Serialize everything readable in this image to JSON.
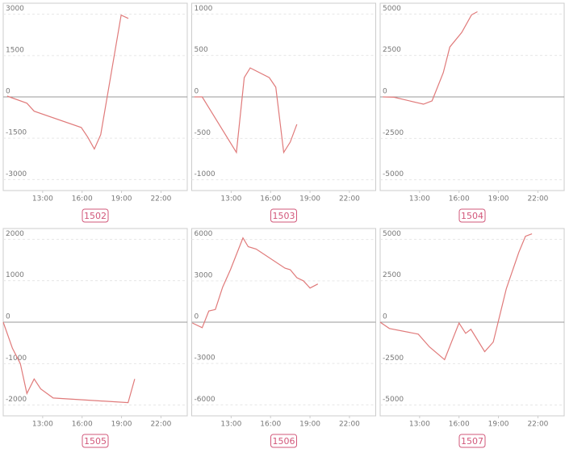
{
  "chart_data": [
    {
      "type": "line",
      "title": "1502",
      "color": "#e07a7a",
      "grid": true,
      "x": [
        10.3,
        11.8,
        12.35,
        15.94,
        16.43,
        16.93,
        17.42,
        18.97,
        19.52
      ],
      "values": [
        30,
        -230,
        -520,
        -1110,
        -1460,
        -1890,
        -1370,
        2970,
        2850
      ],
      "xlim": [
        10,
        24
      ],
      "xticks": [
        {
          "value": 13,
          "label": "13:00"
        },
        {
          "value": 16,
          "label": "16:00"
        },
        {
          "value": 19,
          "label": "19:00"
        },
        {
          "value": 22,
          "label": "22:00"
        }
      ],
      "ylim": [
        -3400,
        3400
      ],
      "yticks": [
        3000,
        1500,
        0,
        -1500,
        -3000
      ]
    },
    {
      "type": "line",
      "title": "1503",
      "color": "#e07a7a",
      "grid": true,
      "x": [
        10.2,
        10.8,
        13.4,
        14.0,
        14.45,
        15.9,
        16.4,
        17.0,
        17.5,
        18.0
      ],
      "values": [
        0,
        0,
        -670,
        233,
        350,
        233,
        117,
        -670,
        -545,
        -330
      ],
      "xlim": [
        10,
        24
      ],
      "xticks": [
        {
          "value": 13,
          "label": "13:00"
        },
        {
          "value": 16,
          "label": "16:00"
        },
        {
          "value": 19,
          "label": "19:00"
        },
        {
          "value": 22,
          "label": "22:00"
        }
      ],
      "ylim": [
        -1130,
        1130
      ],
      "yticks": [
        1000,
        500,
        0,
        -500,
        -1000
      ]
    },
    {
      "type": "line",
      "title": "1504",
      "color": "#e07a7a",
      "grid": true,
      "x": [
        10.2,
        11.05,
        13.3,
        13.95,
        14.8,
        15.3,
        16.2,
        16.95,
        17.4
      ],
      "values": [
        0,
        -20,
        -440,
        -240,
        1460,
        3010,
        3880,
        4950,
        5140
      ],
      "xlim": [
        10,
        24
      ],
      "xticks": [
        {
          "value": 13,
          "label": "13:00"
        },
        {
          "value": 16,
          "label": "16:00"
        },
        {
          "value": 19,
          "label": "19:00"
        },
        {
          "value": 22,
          "label": "22:00"
        }
      ],
      "ylim": [
        -5650,
        5650
      ],
      "yticks": [
        5000,
        2500,
        0,
        -2500,
        -5000
      ]
    },
    {
      "type": "line",
      "title": "1505",
      "color": "#e07a7a",
      "grid": true,
      "x": [
        10,
        10.7,
        11.3,
        11.8,
        12.35,
        12.85,
        13.8,
        19.5,
        20.0
      ],
      "values": [
        0,
        -630,
        -1000,
        -1720,
        -1370,
        -1610,
        -1830,
        -1940,
        -1370
      ],
      "xlim": [
        10,
        24
      ],
      "xticks": [
        {
          "value": 13,
          "label": "13:00"
        },
        {
          "value": 16,
          "label": "16:00"
        },
        {
          "value": 19,
          "label": "19:00"
        },
        {
          "value": 22,
          "label": "22:00"
        }
      ],
      "ylim": [
        -2260,
        2260
      ],
      "yticks": [
        2000,
        1000,
        0,
        -1000,
        -2000
      ]
    },
    {
      "type": "line",
      "title": "1506",
      "color": "#e07a7a",
      "grid": true,
      "x": [
        10.05,
        10.8,
        11.3,
        11.8,
        12.35,
        12.95,
        13.9,
        14.3,
        14.9,
        17.1,
        17.5,
        18.0,
        18.5,
        19.0,
        19.6
      ],
      "values": [
        -60,
        -400,
        810,
        920,
        2540,
        3810,
        6120,
        5480,
        5310,
        3920,
        3810,
        3230,
        3000,
        2480,
        2770
      ],
      "xlim": [
        10,
        24
      ],
      "xticks": [
        {
          "value": 13,
          "label": "13:00"
        },
        {
          "value": 16,
          "label": "16:00"
        },
        {
          "value": 19,
          "label": "19:00"
        },
        {
          "value": 22,
          "label": "22:00"
        }
      ],
      "ylim": [
        -6800,
        6800
      ],
      "yticks": [
        6000,
        3000,
        0,
        -3000,
        -6000
      ]
    },
    {
      "type": "line",
      "title": "1507",
      "color": "#e07a7a",
      "grid": true,
      "x": [
        10,
        10.7,
        12.9,
        13.75,
        14.9,
        16.0,
        16.5,
        16.9,
        17.95,
        18.6,
        19.6,
        20.55,
        21.05,
        21.55
      ],
      "values": [
        0,
        -380,
        -720,
        -1490,
        -2260,
        -50,
        -670,
        -430,
        -1780,
        -1200,
        2020,
        4220,
        5180,
        5330
      ],
      "xlim": [
        10,
        24
      ],
      "xticks": [
        {
          "value": 13,
          "label": "13:00"
        },
        {
          "value": 16,
          "label": "16:00"
        },
        {
          "value": 19,
          "label": "19:00"
        },
        {
          "value": 22,
          "label": "22:00"
        }
      ],
      "ylim": [
        -5650,
        5650
      ],
      "yticks": [
        5000,
        2500,
        0,
        -2500,
        -5000
      ]
    }
  ]
}
